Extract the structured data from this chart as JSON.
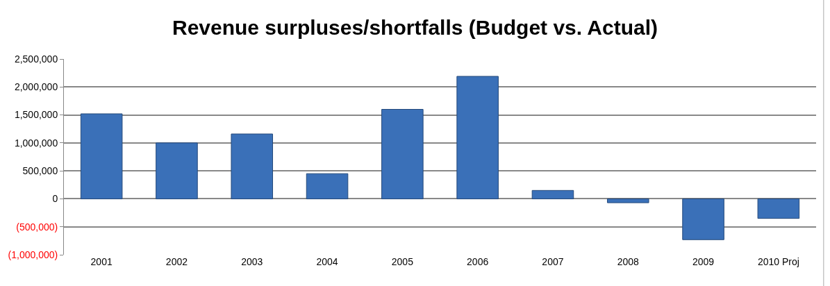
{
  "chart_data": {
    "type": "bar",
    "title": "Revenue surpluses/shortfalls (Budget vs. Actual)",
    "categories": [
      "2001",
      "2002",
      "2003",
      "2004",
      "2005",
      "2006",
      "2007",
      "2008",
      "2009",
      "2010 Proj"
    ],
    "values": [
      1520000,
      1000000,
      1160000,
      450000,
      1600000,
      2190000,
      150000,
      -70000,
      -730000,
      -350000
    ],
    "color": "#3a70b8",
    "ylim": [
      -1000000,
      2500000
    ],
    "yticks": [
      {
        "value": -1000000,
        "label": "(1,000,000)"
      },
      {
        "value": -500000,
        "label": "(500,000)"
      },
      0,
      {
        "value": 500000,
        "label": "500,000"
      },
      {
        "value": 1000000,
        "label": "1,000,000"
      },
      {
        "value": 1500000,
        "label": "1,500,000"
      },
      {
        "value": 2000000,
        "label": "2,000,000"
      },
      {
        "value": 2500000,
        "label": "2,500,000"
      }
    ],
    "grid": "y",
    "legend": false
  }
}
